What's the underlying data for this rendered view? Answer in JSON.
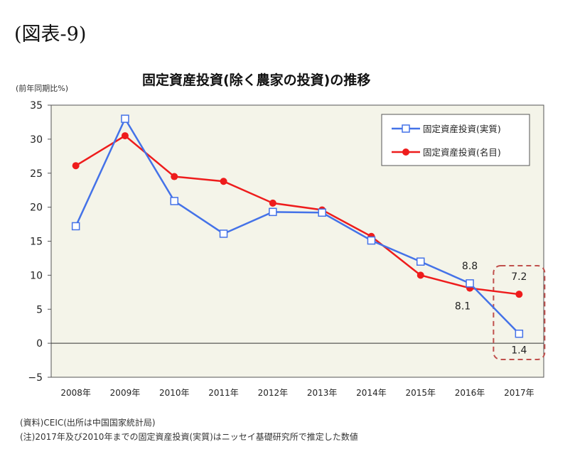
{
  "figure_label": "(図表-9)",
  "chart_data": {
    "type": "line",
    "title": "固定資産投資(除く農家の投資)の推移",
    "y_unit_label": "(前年同期比%)",
    "categories": [
      "2008年",
      "2009年",
      "2010年",
      "2011年",
      "2012年",
      "2013年",
      "2014年",
      "2015年",
      "2016年",
      "2017年"
    ],
    "ylim": [
      -5,
      35
    ],
    "yticks": [
      35,
      30,
      25,
      20,
      15,
      10,
      5,
      0,
      -5
    ],
    "grid": false,
    "legend_position": "top-right",
    "series": [
      {
        "name": "固定資産投資(実質)",
        "color": "#4472e8",
        "marker": "square-open",
        "values": [
          17.2,
          33.0,
          20.9,
          16.1,
          19.3,
          19.2,
          15.1,
          12.0,
          8.8,
          1.4
        ]
      },
      {
        "name": "固定資産投資(名目)",
        "color": "#ee1c1c",
        "marker": "circle-filled",
        "values": [
          26.1,
          30.5,
          24.5,
          23.8,
          20.6,
          19.6,
          15.7,
          10.0,
          8.1,
          7.2
        ]
      }
    ],
    "annotations": [
      {
        "text": "8.8",
        "series": 0,
        "index": 8,
        "pos": "above"
      },
      {
        "text": "8.1",
        "series": 1,
        "index": 8,
        "pos": "below-left"
      },
      {
        "text": "7.2",
        "series": 1,
        "index": 9,
        "pos": "above"
      },
      {
        "text": "1.4",
        "series": 0,
        "index": 9,
        "pos": "below"
      }
    ],
    "highlight_index": 9
  },
  "notes": [
    "(資料)CEIC(出所は中国国家統計局)",
    "(注)2017年及び2010年までの固定資産投資(実質)はニッセイ基礎研究所で推定した数値"
  ]
}
